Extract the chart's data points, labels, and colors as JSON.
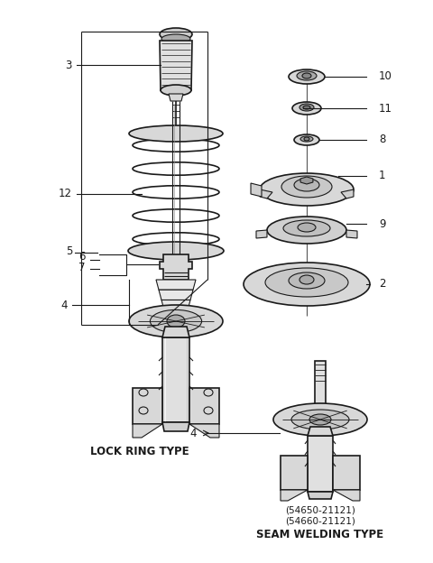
{
  "background_color": "#ffffff",
  "line_color": "#1a1a1a",
  "fig_width": 4.8,
  "fig_height": 6.24,
  "dpi": 100,
  "labels": {
    "lock_ring_type": "LOCK RING TYPE",
    "seam_welding_type": "SEAM WELDING TYPE",
    "part_num1": "(54650-21121)",
    "part_num2": "(54660-21121)"
  }
}
